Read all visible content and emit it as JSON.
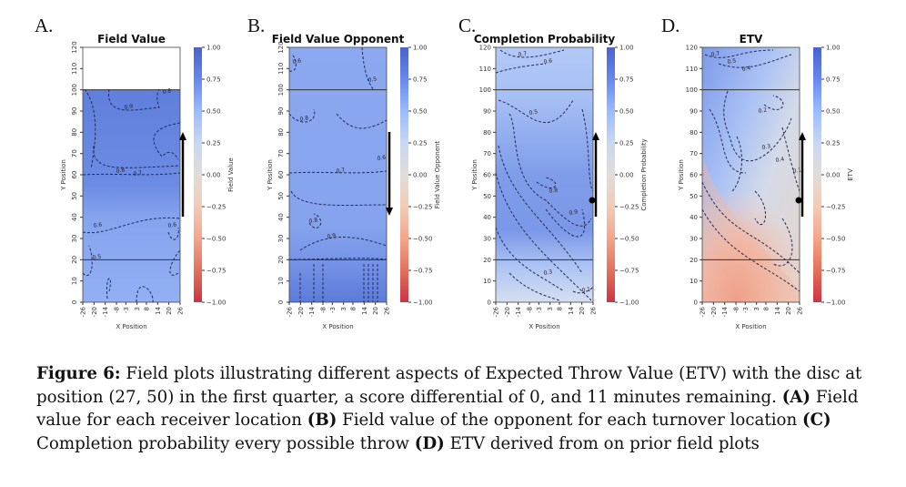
{
  "panels": [
    {
      "letter": "A.",
      "title": "Field Value",
      "xlabel": "X Position",
      "ylabel": "Y Position",
      "cbar_label": "Field Value",
      "arrow": "up",
      "disc_marker": false,
      "contour_labels": [
        "0.9",
        "0.8",
        "0.7",
        "0.6",
        "0.5",
        "0.6",
        "0.8"
      ]
    },
    {
      "letter": "B.",
      "title": "Field Value Opponent",
      "xlabel": "X Position",
      "ylabel": "Y Position",
      "cbar_label": "Field Value Opponent",
      "arrow": "down",
      "disc_marker": false,
      "contour_labels": [
        "0.6",
        "0.7",
        "0.8",
        "0.9",
        "0.5",
        "0.6",
        "0.8"
      ]
    },
    {
      "letter": "C.",
      "title": "Completion Probability",
      "xlabel": "X Position",
      "ylabel": "Y Position",
      "cbar_label": "Completion Probability",
      "arrow": "up",
      "disc_marker": true,
      "contour_labels": [
        "0.7",
        "0.6",
        "0.5",
        "0.8",
        "0.9",
        "0.3",
        "0.1"
      ]
    },
    {
      "letter": "D.",
      "title": "ETV",
      "xlabel": "X Position",
      "ylabel": "Y Position",
      "cbar_label": "ETV",
      "arrow": "up",
      "disc_marker": true,
      "contour_labels": [
        "0.7",
        "0.5",
        "0.4",
        "0.2",
        "0.3",
        "0.4",
        "0.1"
      ]
    }
  ],
  "axes": {
    "x_ticks": [
      "-26",
      "-20",
      "-14",
      "-8",
      "-3",
      "3",
      "8",
      "14",
      "20",
      "26"
    ],
    "y_ticks": [
      "0",
      "10",
      "20",
      "30",
      "40",
      "50",
      "60",
      "70",
      "80",
      "90",
      "100",
      "110",
      "120"
    ],
    "cbar_ticks": [
      "1.00",
      "0.75",
      "0.50",
      "0.25",
      "0.00",
      "−0.25",
      "−0.50",
      "−0.75",
      "−1.00"
    ]
  },
  "caption": {
    "label": "Figure 6:",
    "intro": " Field plots illustrating different aspects of Expected Throw Value (ETV) with the disc at position (27, 50) in the first quarter, a score differential of 0, and 11 minutes remaining. ",
    "a_tag": "(A)",
    "a_text": " Field value for each receiver location ",
    "b_tag": "(B)",
    "b_text": " Field value of the opponent for each turnover location ",
    "c_tag": "(C)",
    "c_text": " Completion probability every possible throw ",
    "d_tag": "(D)",
    "d_text": " ETV derived from on prior field plots"
  },
  "colors": {
    "cmap": [
      "#3b4cc0",
      "#6788ee",
      "#9abbff",
      "#c9d7f0",
      "#dddddd",
      "#f2cbb7",
      "#f7a889",
      "#e26952",
      "#b40426"
    ]
  }
}
